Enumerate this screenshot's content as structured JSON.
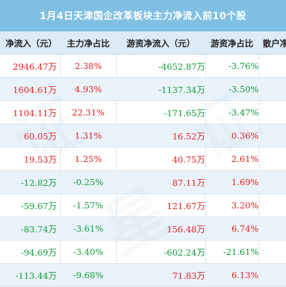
{
  "title": "1月4日天津国企改革板块主力净流入前10个股",
  "headers": [
    "净流入（元）",
    "主力净占比",
    "游资净流入（元）",
    "游资净占比",
    "散户净"
  ],
  "rows": [
    {
      "main_in": "2946.47万",
      "main_pct": "2.38%",
      "hot_in": "-4652.87万",
      "hot_pct": "-3.76%",
      "main_sign": "pos",
      "pct_sign": "pos",
      "hot_sign": "neg",
      "hpct_sign": "neg"
    },
    {
      "main_in": "1604.61万",
      "main_pct": "4.93%",
      "hot_in": "-1137.34万",
      "hot_pct": "-3.50%",
      "main_sign": "pos",
      "pct_sign": "pos",
      "hot_sign": "neg",
      "hpct_sign": "neg"
    },
    {
      "main_in": "1104.11万",
      "main_pct": "22.31%",
      "hot_in": "-171.65万",
      "hot_pct": "-3.47%",
      "main_sign": "pos",
      "pct_sign": "pos",
      "hot_sign": "neg",
      "hpct_sign": "neg"
    },
    {
      "main_in": "60.05万",
      "main_pct": "1.31%",
      "hot_in": "16.52万",
      "hot_pct": "0.36%",
      "main_sign": "pos",
      "pct_sign": "pos",
      "hot_sign": "pos",
      "hpct_sign": "pos"
    },
    {
      "main_in": "19.53万",
      "main_pct": "1.25%",
      "hot_in": "40.75万",
      "hot_pct": "2.61%",
      "main_sign": "pos",
      "pct_sign": "pos",
      "hot_sign": "pos",
      "hpct_sign": "pos"
    },
    {
      "main_in": "-12.82万",
      "main_pct": "-0.25%",
      "hot_in": "87.11万",
      "hot_pct": "1.69%",
      "main_sign": "neg",
      "pct_sign": "neg",
      "hot_sign": "pos",
      "hpct_sign": "pos"
    },
    {
      "main_in": "-59.67万",
      "main_pct": "-1.57%",
      "hot_in": "121.67万",
      "hot_pct": "3.20%",
      "main_sign": "neg",
      "pct_sign": "neg",
      "hot_sign": "pos",
      "hpct_sign": "pos"
    },
    {
      "main_in": "-83.74万",
      "main_pct": "-3.61%",
      "hot_in": "156.48万",
      "hot_pct": "6.74%",
      "main_sign": "neg",
      "pct_sign": "neg",
      "hot_sign": "pos",
      "hpct_sign": "pos"
    },
    {
      "main_in": "-94.69万",
      "main_pct": "-3.40%",
      "hot_in": "-602.24万",
      "hot_pct": "-21.61%",
      "main_sign": "neg",
      "pct_sign": "neg",
      "hot_sign": "neg",
      "hpct_sign": "neg"
    },
    {
      "main_in": "-113.44万",
      "main_pct": "-9.68%",
      "hot_in": "71.83万",
      "hot_pct": "6.13%",
      "main_sign": "neg",
      "pct_sign": "neg",
      "hot_sign": "pos",
      "hpct_sign": "pos"
    }
  ],
  "colors": {
    "title_bg": "#7fbfe3",
    "header_bg": "#dcebf6",
    "alt_row": "#eaf3fa",
    "positive": "#e02020",
    "negative": "#0e9a3a"
  }
}
